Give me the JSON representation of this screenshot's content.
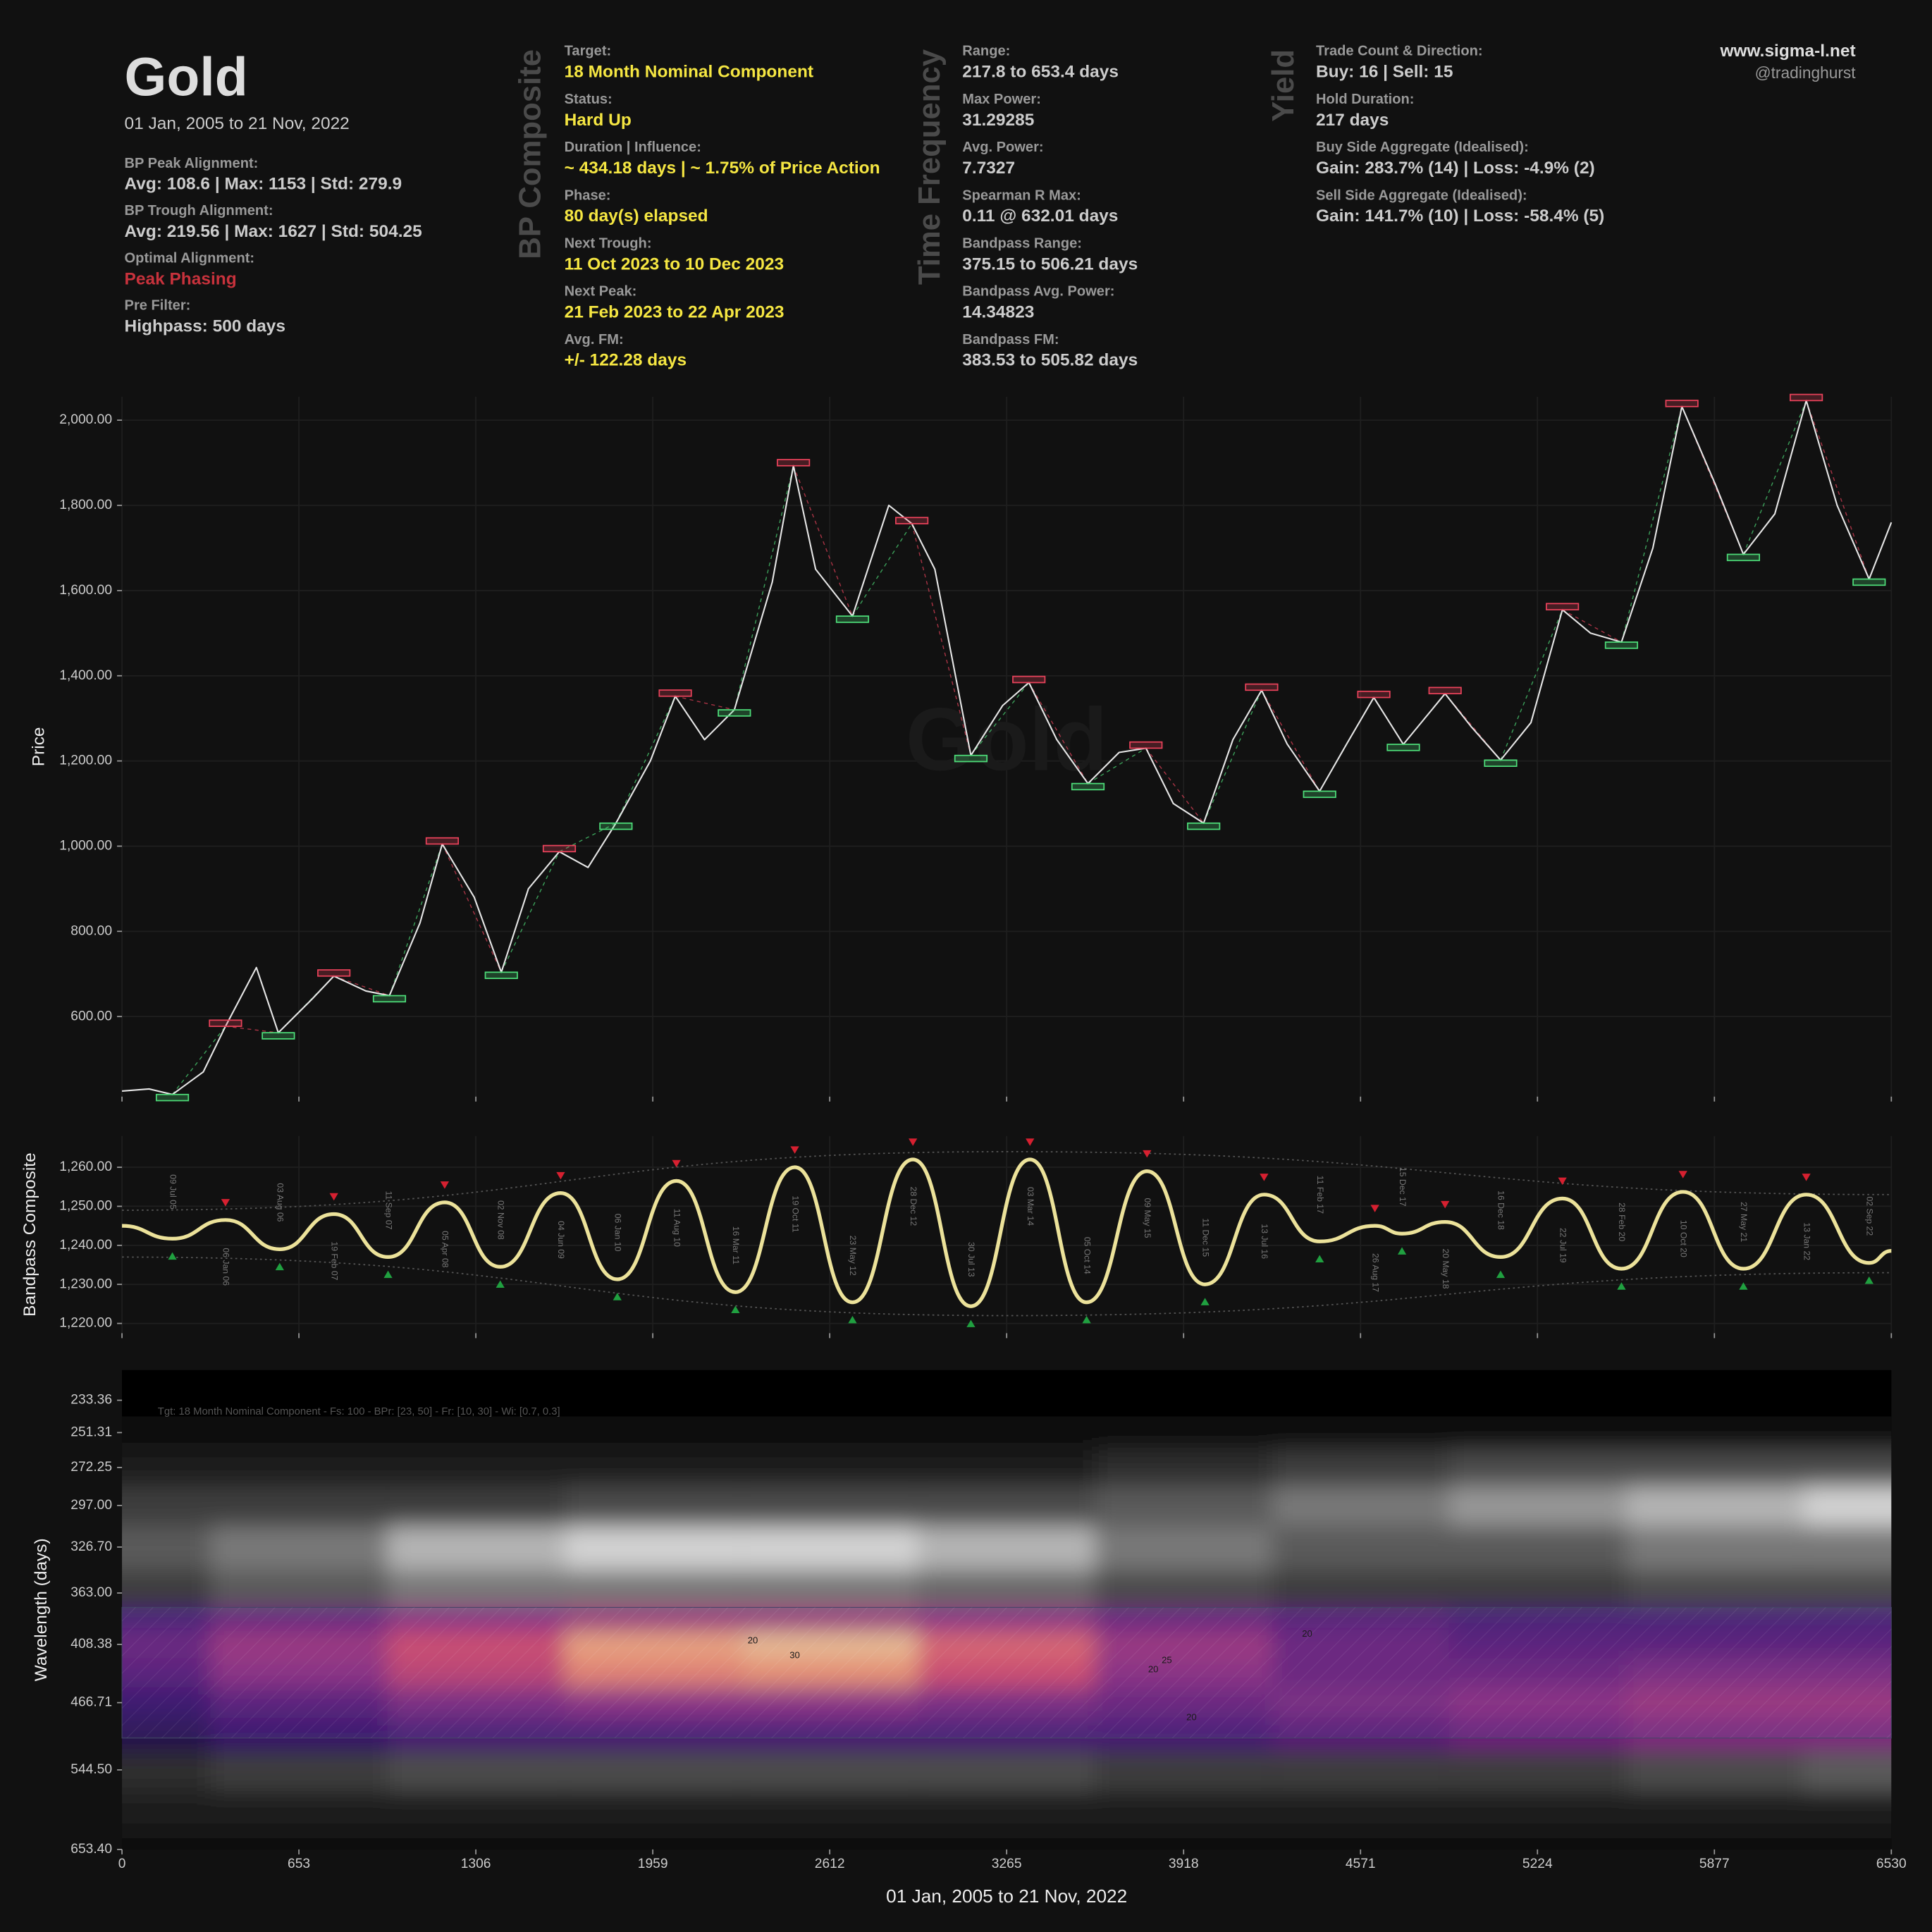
{
  "header": {
    "title": "Gold",
    "subtitle": "01 Jan, 2005 to 21 Nov, 2022",
    "left": [
      {
        "label": "BP Peak Alignment:",
        "value": "Avg: 108.6 | Max: 1153 | Std: 279.9"
      },
      {
        "label": "BP Trough Alignment:",
        "value": "Avg: 219.56 | Max: 1627 | Std: 504.25"
      },
      {
        "label": "Optimal Alignment:",
        "value": "Peak Phasing",
        "color": "#c8323c"
      },
      {
        "label": "Pre Filter:",
        "value": "Highpass: 500 days"
      }
    ],
    "columns": [
      {
        "heading": "BP Composite",
        "value_color": "#f5e642",
        "fields": [
          {
            "label": "Target:",
            "value": "18 Month Nominal Component"
          },
          {
            "label": "Status:",
            "value": "Hard Up"
          },
          {
            "label": "Duration | Influence:",
            "value": "~ 434.18 days | ~ 1.75% of Price Action"
          },
          {
            "label": "Phase:",
            "value": "80 day(s) elapsed"
          },
          {
            "label": "Next Trough:",
            "value": "11 Oct 2023 to 10 Dec 2023"
          },
          {
            "label": "Next Peak:",
            "value": "21 Feb 2023 to 22 Apr 2023"
          },
          {
            "label": "Avg. FM:",
            "value": "+/- 122.28 days"
          }
        ]
      },
      {
        "heading": "Time Frequency",
        "value_color": "#cccccc",
        "fields": [
          {
            "label": "Range:",
            "value": "217.8 to 653.4 days"
          },
          {
            "label": "Max Power:",
            "value": "31.29285"
          },
          {
            "label": "Avg. Power:",
            "value": "7.7327"
          },
          {
            "label": "Spearman R Max:",
            "value": "0.11 @ 632.01 days"
          },
          {
            "label": "Bandpass Range:",
            "value": "375.15 to 506.21 days"
          },
          {
            "label": "Bandpass Avg. Power:",
            "value": "14.34823"
          },
          {
            "label": "Bandpass FM:",
            "value": "383.53 to 505.82 days"
          }
        ]
      },
      {
        "heading": "Yield",
        "value_color": "#cccccc",
        "fields": [
          {
            "label": "Trade Count & Direction:",
            "value": "Buy: 16 | Sell: 15"
          },
          {
            "label": "Hold Duration:",
            "value": "217 days"
          },
          {
            "label": "Buy Side Aggregate (Idealised):",
            "value": "Gain: 283.7% (14) | Loss: -4.9% (2)"
          },
          {
            "label": "Sell Side Aggregate (Idealised):",
            "value": "Gain: 141.7% (10) | Loss: -58.4% (5)"
          }
        ]
      }
    ],
    "site": "www.sigma-l.net",
    "handle": "@tradinghurst"
  },
  "chart_data": [
    {
      "type": "line",
      "ylabel": "Price",
      "watermark": "Gold",
      "color": "#e6e6e6",
      "grid": true,
      "xlim": [
        0,
        6530
      ],
      "ylim": [
        412,
        2055
      ],
      "yticks": [
        {
          "value": 600,
          "label": "600.00"
        },
        {
          "value": 800,
          "label": "800.00"
        },
        {
          "value": 1000,
          "label": "1,000.00"
        },
        {
          "value": 1200,
          "label": "1,200.00"
        },
        {
          "value": 1400,
          "label": "1,400.00"
        },
        {
          "value": 1600,
          "label": "1,600.00"
        },
        {
          "value": 1800,
          "label": "1,800.00"
        },
        {
          "value": 2000,
          "label": "2,000.00"
        }
      ],
      "x": [
        0,
        100,
        186,
        300,
        382,
        496,
        577,
        700,
        782,
        900,
        987,
        1100,
        1182,
        1300,
        1400,
        1500,
        1614,
        1720,
        1823,
        1950,
        2042,
        2150,
        2260,
        2400,
        2478,
        2560,
        2696,
        2830,
        2915,
        3000,
        3133,
        3250,
        3347,
        3450,
        3565,
        3680,
        3779,
        3880,
        3992,
        4100,
        4206,
        4300,
        4420,
        4520,
        4620,
        4729,
        4883,
        4980,
        5088,
        5200,
        5316,
        5420,
        5534,
        5650,
        5757,
        5880,
        5984,
        6100,
        6216,
        6330,
        6448,
        6530
      ],
      "values": [
        425,
        430,
        417,
        470,
        577,
        715,
        562,
        640,
        695,
        660,
        649,
        820,
        1005,
        880,
        704,
        900,
        987,
        950,
        1054,
        1200,
        1352,
        1250,
        1320,
        1620,
        1893,
        1650,
        1540,
        1800,
        1757,
        1650,
        1213,
        1330,
        1384,
        1250,
        1147,
        1220,
        1230,
        1100,
        1054,
        1250,
        1366,
        1240,
        1129,
        1240,
        1349,
        1239,
        1358,
        1280,
        1202,
        1290,
        1555,
        1500,
        1479,
        1700,
        2032,
        1850,
        1685,
        1780,
        2046,
        1800,
        1627,
        1760
      ],
      "peak_boxes": {
        "color": "#e8425a",
        "x": [
          382,
          782,
          1182,
          1614,
          2042,
          2478,
          2915,
          3347,
          3779,
          4206,
          4620,
          4883,
          5316,
          5757,
          6216
        ],
        "values": [
          577,
          695,
          1005,
          987,
          1352,
          1893,
          1757,
          1384,
          1230,
          1366,
          1349,
          1358,
          1555,
          2032,
          2046
        ]
      },
      "trough_boxes": {
        "color": "#4ddc78",
        "x": [
          186,
          577,
          987,
          1400,
          1823,
          2260,
          2696,
          3133,
          3565,
          3992,
          4420,
          4729,
          5088,
          5534,
          5984,
          6448
        ],
        "values": [
          417,
          562,
          649,
          704,
          1054,
          1320,
          1540,
          1213,
          1147,
          1054,
          1129,
          1239,
          1202,
          1479,
          1685,
          1627
        ]
      }
    },
    {
      "type": "line",
      "ylabel": "Bandpass Composite",
      "color": "#ece29a",
      "grid": true,
      "xlim": [
        0,
        6530
      ],
      "ylim": [
        1217.5,
        1268
      ],
      "yticks": [
        {
          "value": 1220,
          "label": "1,220.00"
        },
        {
          "value": 1230,
          "label": "1,230.00"
        },
        {
          "value": 1240,
          "label": "1,240.00"
        },
        {
          "value": 1250,
          "label": "1,250.00"
        },
        {
          "value": 1260,
          "label": "1,260.00"
        }
      ],
      "x": [
        0,
        186,
        382,
        582,
        782,
        982,
        1191,
        1396,
        1619,
        1828,
        2046,
        2264,
        2483,
        2696,
        2919,
        3133,
        3351,
        3560,
        3783,
        3997,
        4215,
        4420,
        4624,
        4724,
        4883,
        5088,
        5316,
        5534,
        5761,
        5984,
        6216,
        6448,
        6530
      ],
      "values": [
        1245,
        1241.7,
        1246.5,
        1239,
        1248,
        1237,
        1251,
        1234.5,
        1253.4,
        1231.3,
        1256.5,
        1228,
        1260,
        1225.4,
        1262,
        1224.4,
        1262,
        1225.4,
        1259,
        1230,
        1253,
        1241,
        1245,
        1243,
        1246,
        1237,
        1252,
        1234,
        1253.7,
        1234,
        1253,
        1235.5,
        1238.6
      ],
      "point_labels": [
        null,
        "09 Jul 05",
        "06 Jan 06",
        "03 Aug 06",
        "19 Feb 07",
        "11 Sep 07",
        "05 Apr 08",
        "02 Nov 08",
        "04 Jun 09",
        "06 Jan 10",
        "11 Aug 10",
        "16 Mar 11",
        "19 Oct 11",
        "23 May 12",
        "28 Dec 12",
        "30 Jul 13",
        "03 Mar 14",
        "05 Oct 14",
        "09 May 15",
        "11 Dec 15",
        "13 Jul 16",
        "11 Feb 17",
        "26 Aug 17",
        "15 Dec 17",
        "20 May 18",
        "16 Dec 18",
        "22 Jul 19",
        "28 Feb 20",
        "10 Oct 20",
        "27 May 21",
        "13 Jan 22",
        "02 Sep 22",
        null
      ],
      "peak_color": "#d62030",
      "trough_color": "#20a040",
      "upper_envelope": {
        "x": [
          0,
          3265,
          6530
        ],
        "values": [
          1249,
          1264,
          1253
        ]
      },
      "lower_envelope": {
        "x": [
          0,
          3265,
          6530
        ],
        "values": [
          1237,
          1222,
          1233
        ]
      }
    },
    {
      "type": "heatmap",
      "ylabel": "Wavelength (days)",
      "xlabel": "01 Jan, 2005 to 21 Nov, 2022",
      "annotation": "Tgt: 18 Month Nominal Component - Fs: 100 - BPr: [23, 50] - Fr: [10, 30] - Wi: [0.7, 0.3]",
      "xlim": [
        0,
        6530
      ],
      "xticks": [
        0,
        653,
        1306,
        1959,
        2612,
        3265,
        3918,
        4571,
        5224,
        5877,
        6530
      ],
      "ylim": [
        217.8,
        653.4
      ],
      "log_scale": true,
      "y_direction": "down",
      "yticks": [
        233.36,
        251.31,
        272.25,
        {
          "value": 297,
          "label": "297.00"
        },
        {
          "value": 326.7,
          "label": "326.70"
        },
        {
          "value": 363,
          "label": "363.00"
        },
        408.38,
        466.71,
        {
          "value": 544.5,
          "label": "544.50"
        },
        {
          "value": 653.4,
          "label": "653.40"
        }
      ],
      "bandpass_range": [
        375.15,
        506.21
      ],
      "colormap": "magma",
      "outside_colormap": "gray",
      "zmax": 35,
      "gray_max": 15,
      "x": [
        0,
        653,
        1306,
        1959,
        2612,
        3265,
        3918,
        4571,
        5224,
        5877,
        6530
      ],
      "wavelengths": [
        233.36,
        251.31,
        272.25,
        297,
        326.7,
        363,
        385,
        408.38,
        435,
        466.71,
        500,
        544.5,
        600,
        653.4
      ],
      "z": [
        [
          0,
          0,
          0,
          0,
          0,
          0,
          0,
          0,
          0,
          0,
          0
        ],
        [
          1,
          1,
          1,
          1,
          1,
          1,
          1,
          1,
          1,
          1,
          1
        ],
        [
          2,
          2,
          2,
          2,
          2,
          2,
          3,
          4,
          5,
          5,
          5
        ],
        [
          4,
          4,
          4,
          5,
          5,
          5,
          6,
          8,
          10,
          12,
          14
        ],
        [
          6,
          8,
          12,
          14,
          14,
          12,
          8,
          6,
          6,
          8,
          8
        ],
        [
          4,
          6,
          8,
          8,
          8,
          7,
          5,
          4,
          4,
          5,
          5
        ],
        [
          10,
          14,
          18,
          20,
          20,
          18,
          14,
          12,
          10,
          10,
          10
        ],
        [
          14,
          20,
          26,
          32,
          33,
          28,
          20,
          14,
          12,
          12,
          12
        ],
        [
          12,
          18,
          24,
          30,
          31,
          26,
          18,
          14,
          14,
          16,
          16
        ],
        [
          8,
          12,
          16,
          18,
          18,
          16,
          14,
          16,
          18,
          20,
          20
        ],
        [
          6,
          8,
          10,
          10,
          10,
          10,
          10,
          12,
          14,
          16,
          16
        ],
        [
          3,
          4,
          5,
          5,
          5,
          5,
          4,
          4,
          4,
          5,
          6
        ],
        [
          2,
          2,
          2,
          2,
          2,
          2,
          2,
          2,
          2,
          2,
          2
        ],
        [
          1,
          1,
          1,
          1,
          1,
          1,
          1,
          1,
          1,
          1,
          1
        ]
      ],
      "contour_labels": [
        {
          "x": 2328,
          "y": 405,
          "value": 20
        },
        {
          "x": 2483,
          "y": 419,
          "value": 30
        },
        {
          "x": 3856,
          "y": 424,
          "value": 25
        },
        {
          "x": 3806,
          "y": 433,
          "value": 20
        },
        {
          "x": 4374,
          "y": 399,
          "value": 20
        },
        {
          "x": 3947,
          "y": 483,
          "value": 20
        }
      ]
    }
  ]
}
